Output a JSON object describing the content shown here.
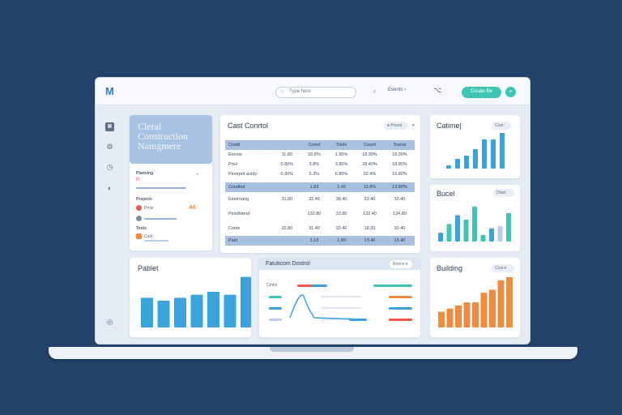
{
  "topbar": {
    "logo_text": "M",
    "search_placeholder": "Type here",
    "search_icon": "search-icon",
    "nav_back": "‹",
    "nav_forward": "›",
    "menu_item": "Events",
    "filter_icon": "filter-icon",
    "action_button": "Create file",
    "avatar_initial": "+"
  },
  "sidebar": {
    "icons": [
      "calendar-icon",
      "tools-icon",
      "clock-icon",
      "settings-icon",
      "help-icon"
    ]
  },
  "hero": {
    "line1": "Cleral",
    "line2": "Construction",
    "line3": "Namgmere"
  },
  "project_list": {
    "items": [
      {
        "label": "Planning",
        "sub": "Pl.",
        "value": ""
      },
      {
        "label": "Projects",
        "sub": "Prcle",
        "value": "A6"
      },
      {
        "label": "Tools",
        "sub": "Cost",
        "value": ""
      }
    ]
  },
  "cost_control": {
    "title": "Cast Conrtol",
    "dropdown": "Pnces",
    "header1": [
      "Costd",
      "",
      "Cored",
      "Tools",
      "Cosrd",
      "Tceros"
    ],
    "rows1": [
      [
        "Eocost",
        "11.80",
        "33.8%",
        "1.90%",
        "18.30%",
        "18.30%"
      ],
      [
        "Pnel",
        "0.80%",
        "3.8%",
        "3.80%",
        "28.40%",
        "18.80%"
      ],
      [
        "Pinorpnt aoldy",
        "0.30%",
        "5.3%",
        "6.80%",
        "32.4%",
        "15.80%"
      ]
    ],
    "header2": [
      "Coodled",
      "",
      "1.83",
      "1.40",
      "13.8%",
      "13.80%"
    ],
    "rows2": [
      [
        "Eeelrnang",
        "31.80",
        "32.40",
        "38.40",
        "33.40",
        "33.40"
      ],
      [
        "Pesdhtend",
        "",
        "132.80",
        "33.80",
        "132.40",
        "134.80"
      ],
      [
        "Conts",
        "32.80",
        "31.40",
        "32.40",
        "18.20",
        "32.40"
      ]
    ],
    "footer": [
      "Paid",
      "",
      "3.13",
      "1.80",
      "13.40",
      "13.40"
    ]
  },
  "cashflow": {
    "title": "Catime|",
    "dropdown": "Cost"
  },
  "budget": {
    "title": "Bucel",
    "dropdown": "Dtact"
  },
  "parties": {
    "title": "Pablet"
  },
  "function_control": {
    "title": "Fatuticom Dostrol",
    "dropdown": "Ronce",
    "row_label": "Cmml"
  },
  "building": {
    "title": "Building",
    "dropdown": "Cost"
  },
  "colors": {
    "teal": "#3fc6b3",
    "blue": "#3aa3dc",
    "orange": "#f08a3c",
    "light_blue": "#b7cde8",
    "red": "#e8594a",
    "navy_background": "#24436b"
  },
  "chart_data": [
    {
      "type": "bar",
      "title": "Catime|",
      "series": [
        {
          "values": [
            1,
            3,
            4,
            6,
            9,
            9,
            11
          ]
        },
        {
          "values": [
            0,
            0,
            0,
            0,
            7,
            6,
            6
          ]
        }
      ]
    },
    {
      "type": "bar",
      "title": "Bucel",
      "values": [
        4,
        8,
        12,
        10,
        16,
        3,
        6,
        7,
        13
      ]
    },
    {
      "type": "bar",
      "title": "Pablet",
      "values": [
        10,
        9,
        10,
        11,
        12,
        11,
        17
      ]
    },
    {
      "type": "bar",
      "title": "Building",
      "values": [
        5,
        6,
        7,
        8,
        8,
        11,
        12,
        15,
        16
      ]
    }
  ]
}
